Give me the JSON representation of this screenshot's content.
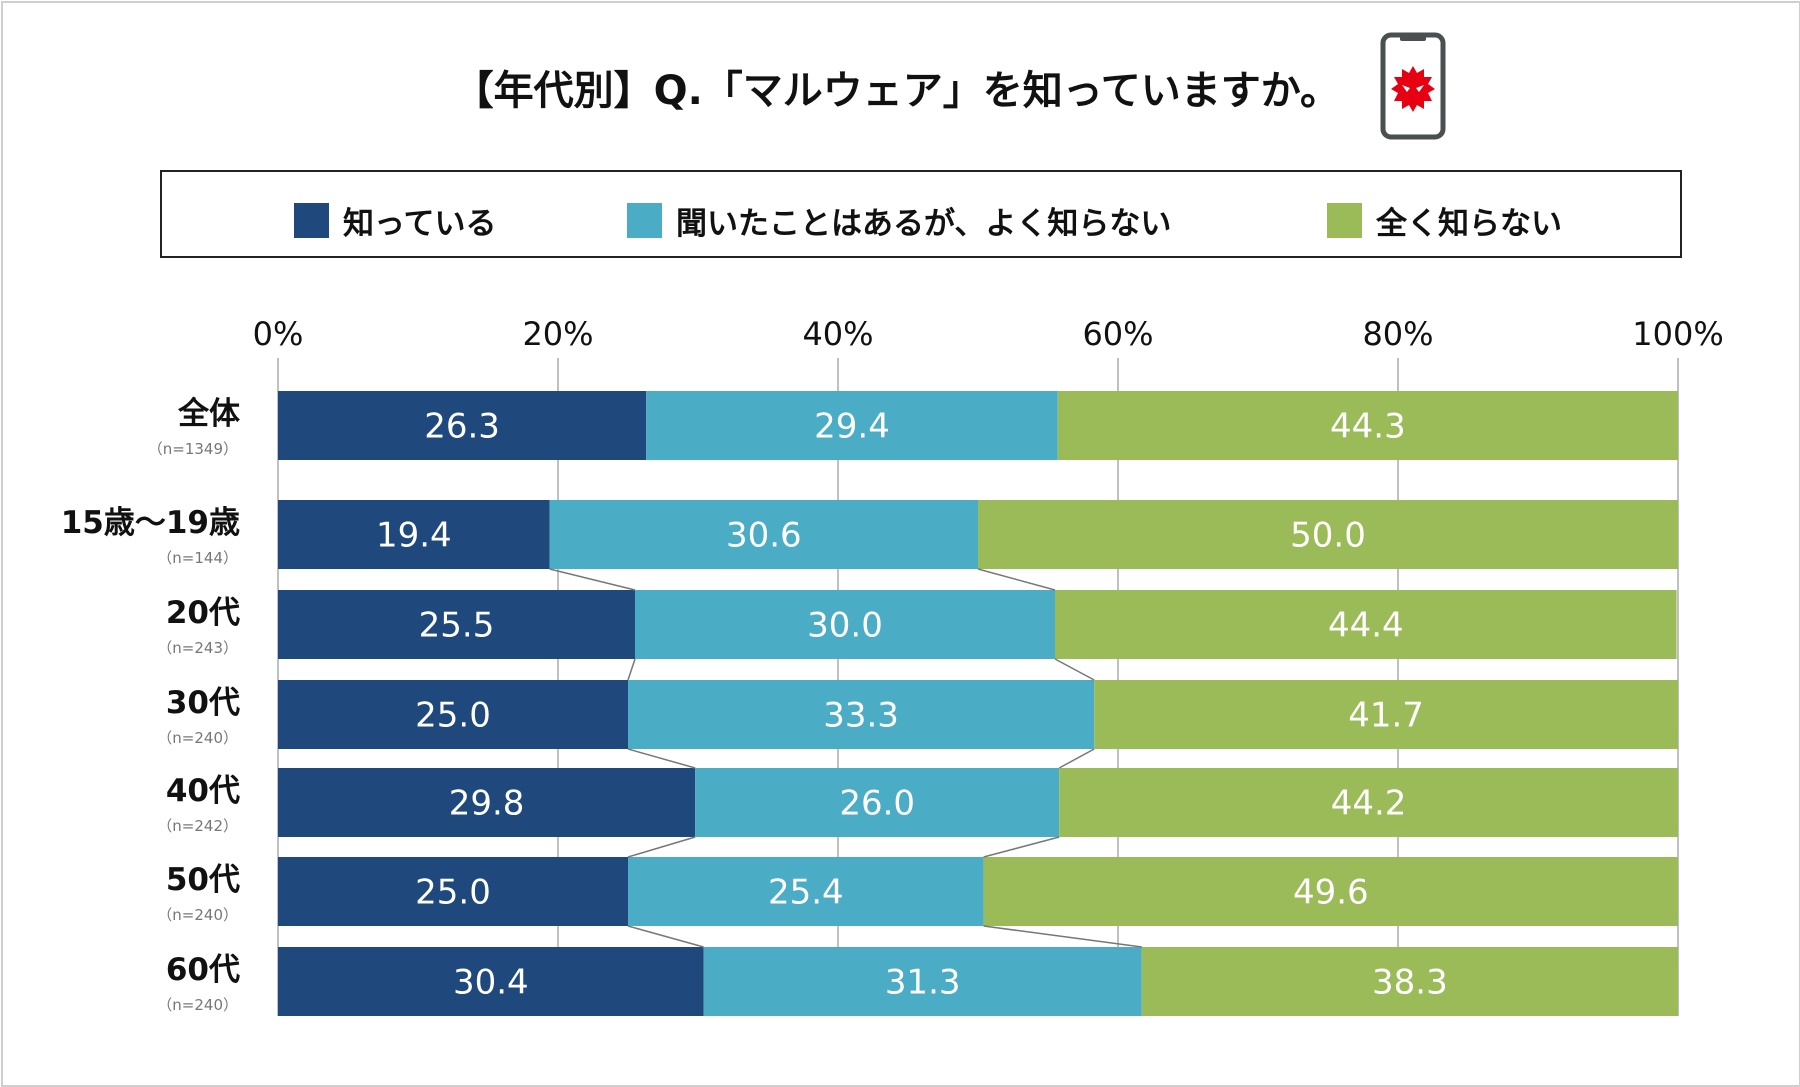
{
  "title": "【年代別】Q.「マルウェア」を知っていますか。",
  "icon": "smartphone-malware-icon",
  "chart_data": {
    "type": "bar",
    "orientation": "horizontal",
    "stacked": true,
    "percent": true,
    "xlim": [
      0,
      100
    ],
    "x_ticks": [
      "0%",
      "20%",
      "40%",
      "60%",
      "80%",
      "100%"
    ],
    "grid": true,
    "legend_position": "top",
    "categories": [
      "全体",
      "15歳〜19歳",
      "20代",
      "30代",
      "40代",
      "50代",
      "60代"
    ],
    "sample_sizes": [
      "（n=1349）",
      "（n=144）",
      "（n=243）",
      "（n=240）",
      "（n=242）",
      "（n=240）",
      "（n=240）"
    ],
    "series": [
      {
        "name": "知っている",
        "color": "#1f497d",
        "values": [
          26.3,
          19.4,
          25.5,
          25.0,
          29.8,
          25.0,
          30.4
        ]
      },
      {
        "name": "聞いたことはあるが、よく知らない",
        "color": "#4bacc6",
        "values": [
          29.4,
          30.6,
          30.0,
          33.3,
          26.0,
          25.4,
          31.3
        ]
      },
      {
        "name": "全く知らない",
        "color": "#9bbb59",
        "values": [
          44.3,
          50.0,
          44.4,
          41.7,
          44.2,
          49.6,
          38.3
        ]
      }
    ],
    "value_labels": [
      [
        "26.3",
        "19.4",
        "25.5",
        "25.0",
        "29.8",
        "25.0",
        "30.4"
      ],
      [
        "29.4",
        "30.6",
        "30.0",
        "33.3",
        "26.0",
        "25.4",
        "31.3"
      ],
      [
        "44.3",
        "50.0",
        "44.4",
        "41.7",
        "44.2",
        "49.6",
        "38.3"
      ]
    ]
  }
}
